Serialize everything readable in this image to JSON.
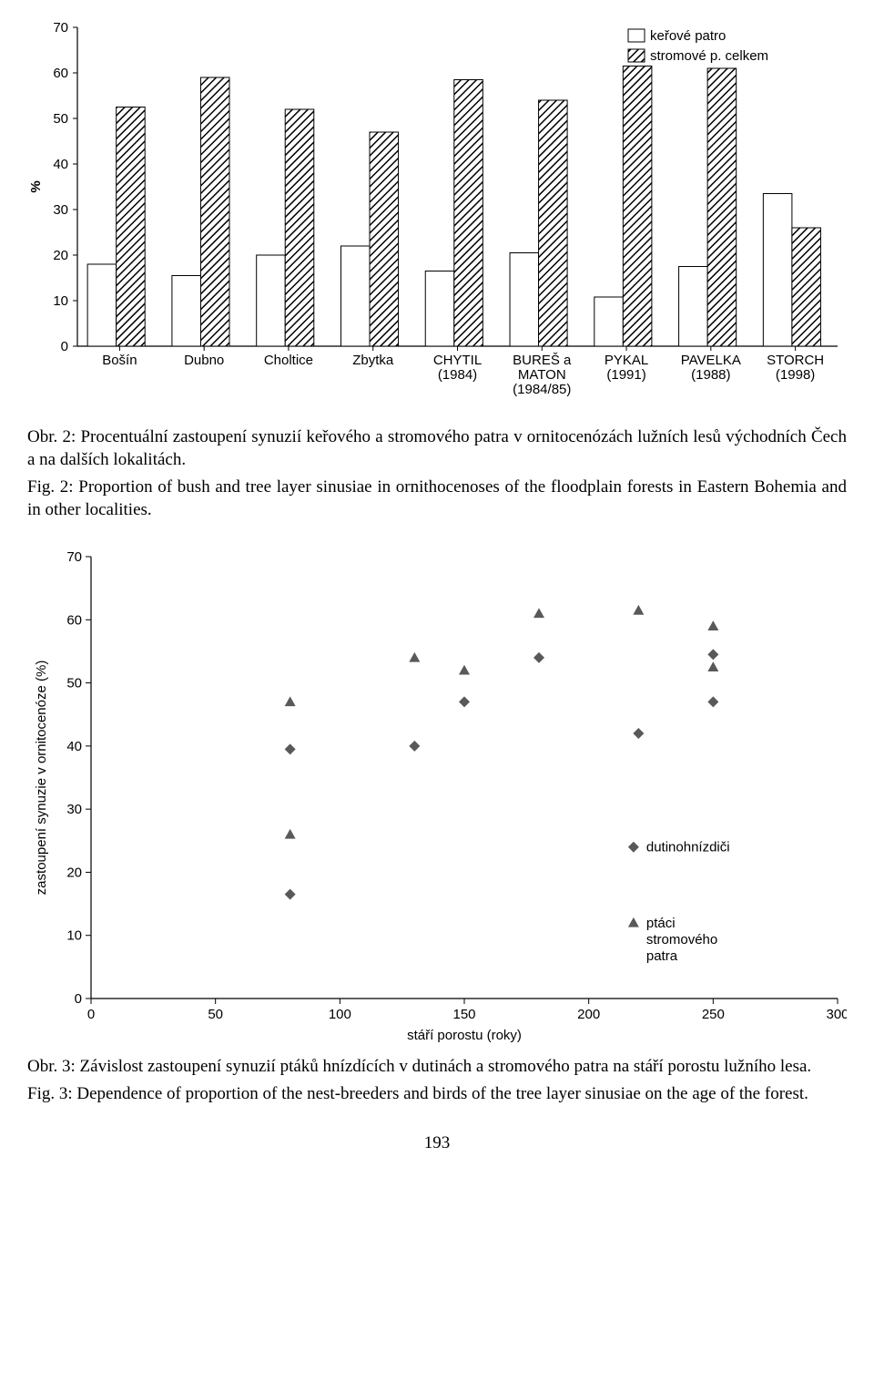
{
  "bar_chart": {
    "type": "grouped-bar",
    "ylabel": "%",
    "ylim": [
      0,
      70
    ],
    "ytick_step": 10,
    "categories": [
      "Bošín",
      "Dubno",
      "Choltice",
      "Zbytka",
      "CHYTIL (1984)",
      "BUREŠ a MATON (1984/85)",
      "PYKAL (1991)",
      "PAVELKA (1988)",
      "STORCH (1998)"
    ],
    "series": [
      {
        "name": "keřové patro",
        "fill": "#ffffff",
        "pattern": "none",
        "values": [
          18,
          15.5,
          20,
          22,
          16.5,
          20.5,
          10.8,
          17.5,
          33.5
        ]
      },
      {
        "name": "stromové p. celkem",
        "fill": "#000000",
        "pattern": "diagonal-hatch",
        "values": [
          52.5,
          59,
          52,
          47,
          58.5,
          54,
          61.5,
          61,
          26
        ]
      }
    ],
    "bar_color_outline": "#000000",
    "background_color": "#ffffff",
    "label_fontsize": 15,
    "tick_fontsize": 15
  },
  "caption1_cs": "Obr. 2: Procentuální zastoupení synuzií keřového a stromového patra v ornitocenózách lužních lesů východních Čech a na dalších lokalitách.",
  "caption1_en": "Fig. 2: Proportion of bush and tree layer sinusiae in ornithocenoses of the floodplain forests in Eastern Bohemia and in other localities.",
  "scatter_chart": {
    "type": "scatter",
    "xlabel": "stáří porostu (roky)",
    "ylabel": "zastoupení synuzie v ornitocenóze (%)",
    "xlim": [
      0,
      300
    ],
    "xtick_step": 50,
    "ylim": [
      0,
      70
    ],
    "ytick_step": 10,
    "series": [
      {
        "name": "dutinohnízdiči",
        "marker": "diamond",
        "color": "#595959",
        "points": [
          [
            80,
            16.5
          ],
          [
            80,
            39.5
          ],
          [
            130,
            40
          ],
          [
            150,
            47
          ],
          [
            180,
            54
          ],
          [
            220,
            42
          ],
          [
            250,
            54.5
          ],
          [
            250,
            47
          ]
        ]
      },
      {
        "name": "ptáci stromového patra",
        "marker": "triangle",
        "color": "#595959",
        "points": [
          [
            80,
            26
          ],
          [
            80,
            47
          ],
          [
            130,
            54
          ],
          [
            150,
            52
          ],
          [
            180,
            61
          ],
          [
            220,
            61.5
          ],
          [
            250,
            59
          ],
          [
            250,
            52.5
          ]
        ]
      }
    ],
    "legend_label2_line2": "stromového",
    "legend_label2_line3": "patra",
    "marker_size": 12,
    "label_fontsize": 15,
    "tick_fontsize": 15
  },
  "caption2_cs": "Obr. 3: Závislost zastoupení synuzií ptáků hnízdících v dutinách a stromového patra na stáří porostu lužního lesa.",
  "caption2_en": "Fig. 3: Dependence of proportion of the nest-breeders and birds of the tree layer sinusiae on the age of the forest.",
  "page_number": "193"
}
